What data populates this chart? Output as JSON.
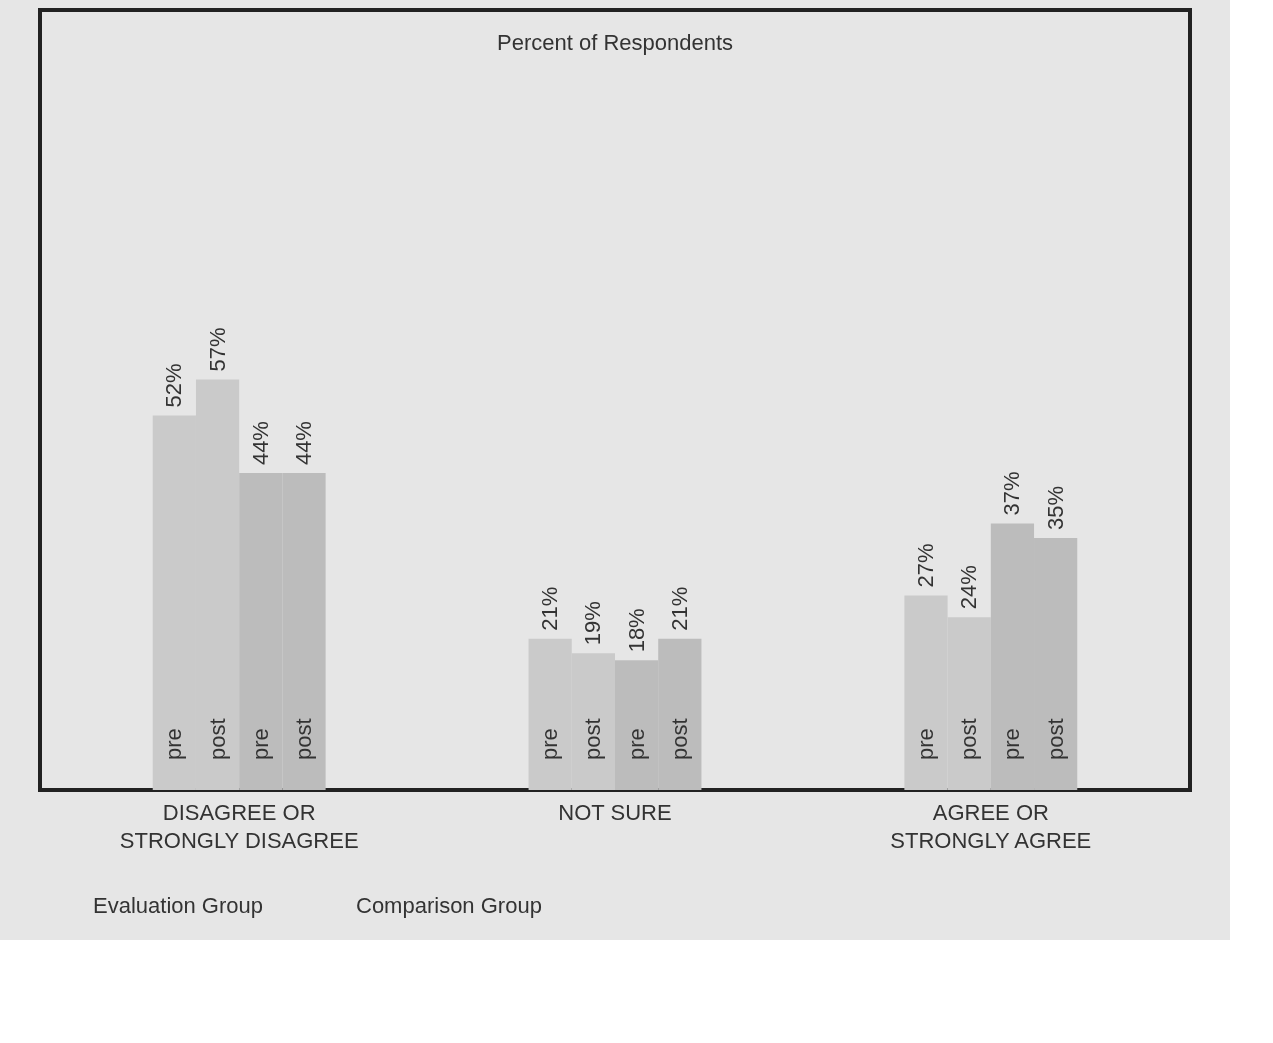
{
  "chart_data": {
    "type": "bar",
    "title": "Percent of Respondents",
    "categories": [
      "DISAGREE OR STRONGLY DISAGREE",
      "NOT SURE",
      "AGREE OR STRONGLY AGREE"
    ],
    "series": [
      {
        "name": "pre",
        "color": "#cacaca",
        "values": [
          52,
          21,
          27
        ],
        "value_labels": [
          "52%",
          "21%",
          "27%"
        ]
      },
      {
        "name": "post",
        "color": "#cacaca",
        "values": [
          57,
          19,
          24
        ],
        "value_labels": [
          "57%",
          "19%",
          "24%"
        ]
      },
      {
        "name": "pre",
        "color": "#bcbcbc",
        "values": [
          44,
          18,
          37
        ],
        "value_labels": [
          "44%",
          "18%",
          "37%"
        ]
      },
      {
        "name": "post",
        "color": "#bcbcbc",
        "values": [
          44,
          21,
          35
        ],
        "value_labels": [
          "44%",
          "21%",
          "35%"
        ]
      }
    ],
    "annotations": [
      "Evaluation Group",
      "Comparison Group"
    ],
    "legend": "bottom",
    "tick_labels": "x"
  }
}
